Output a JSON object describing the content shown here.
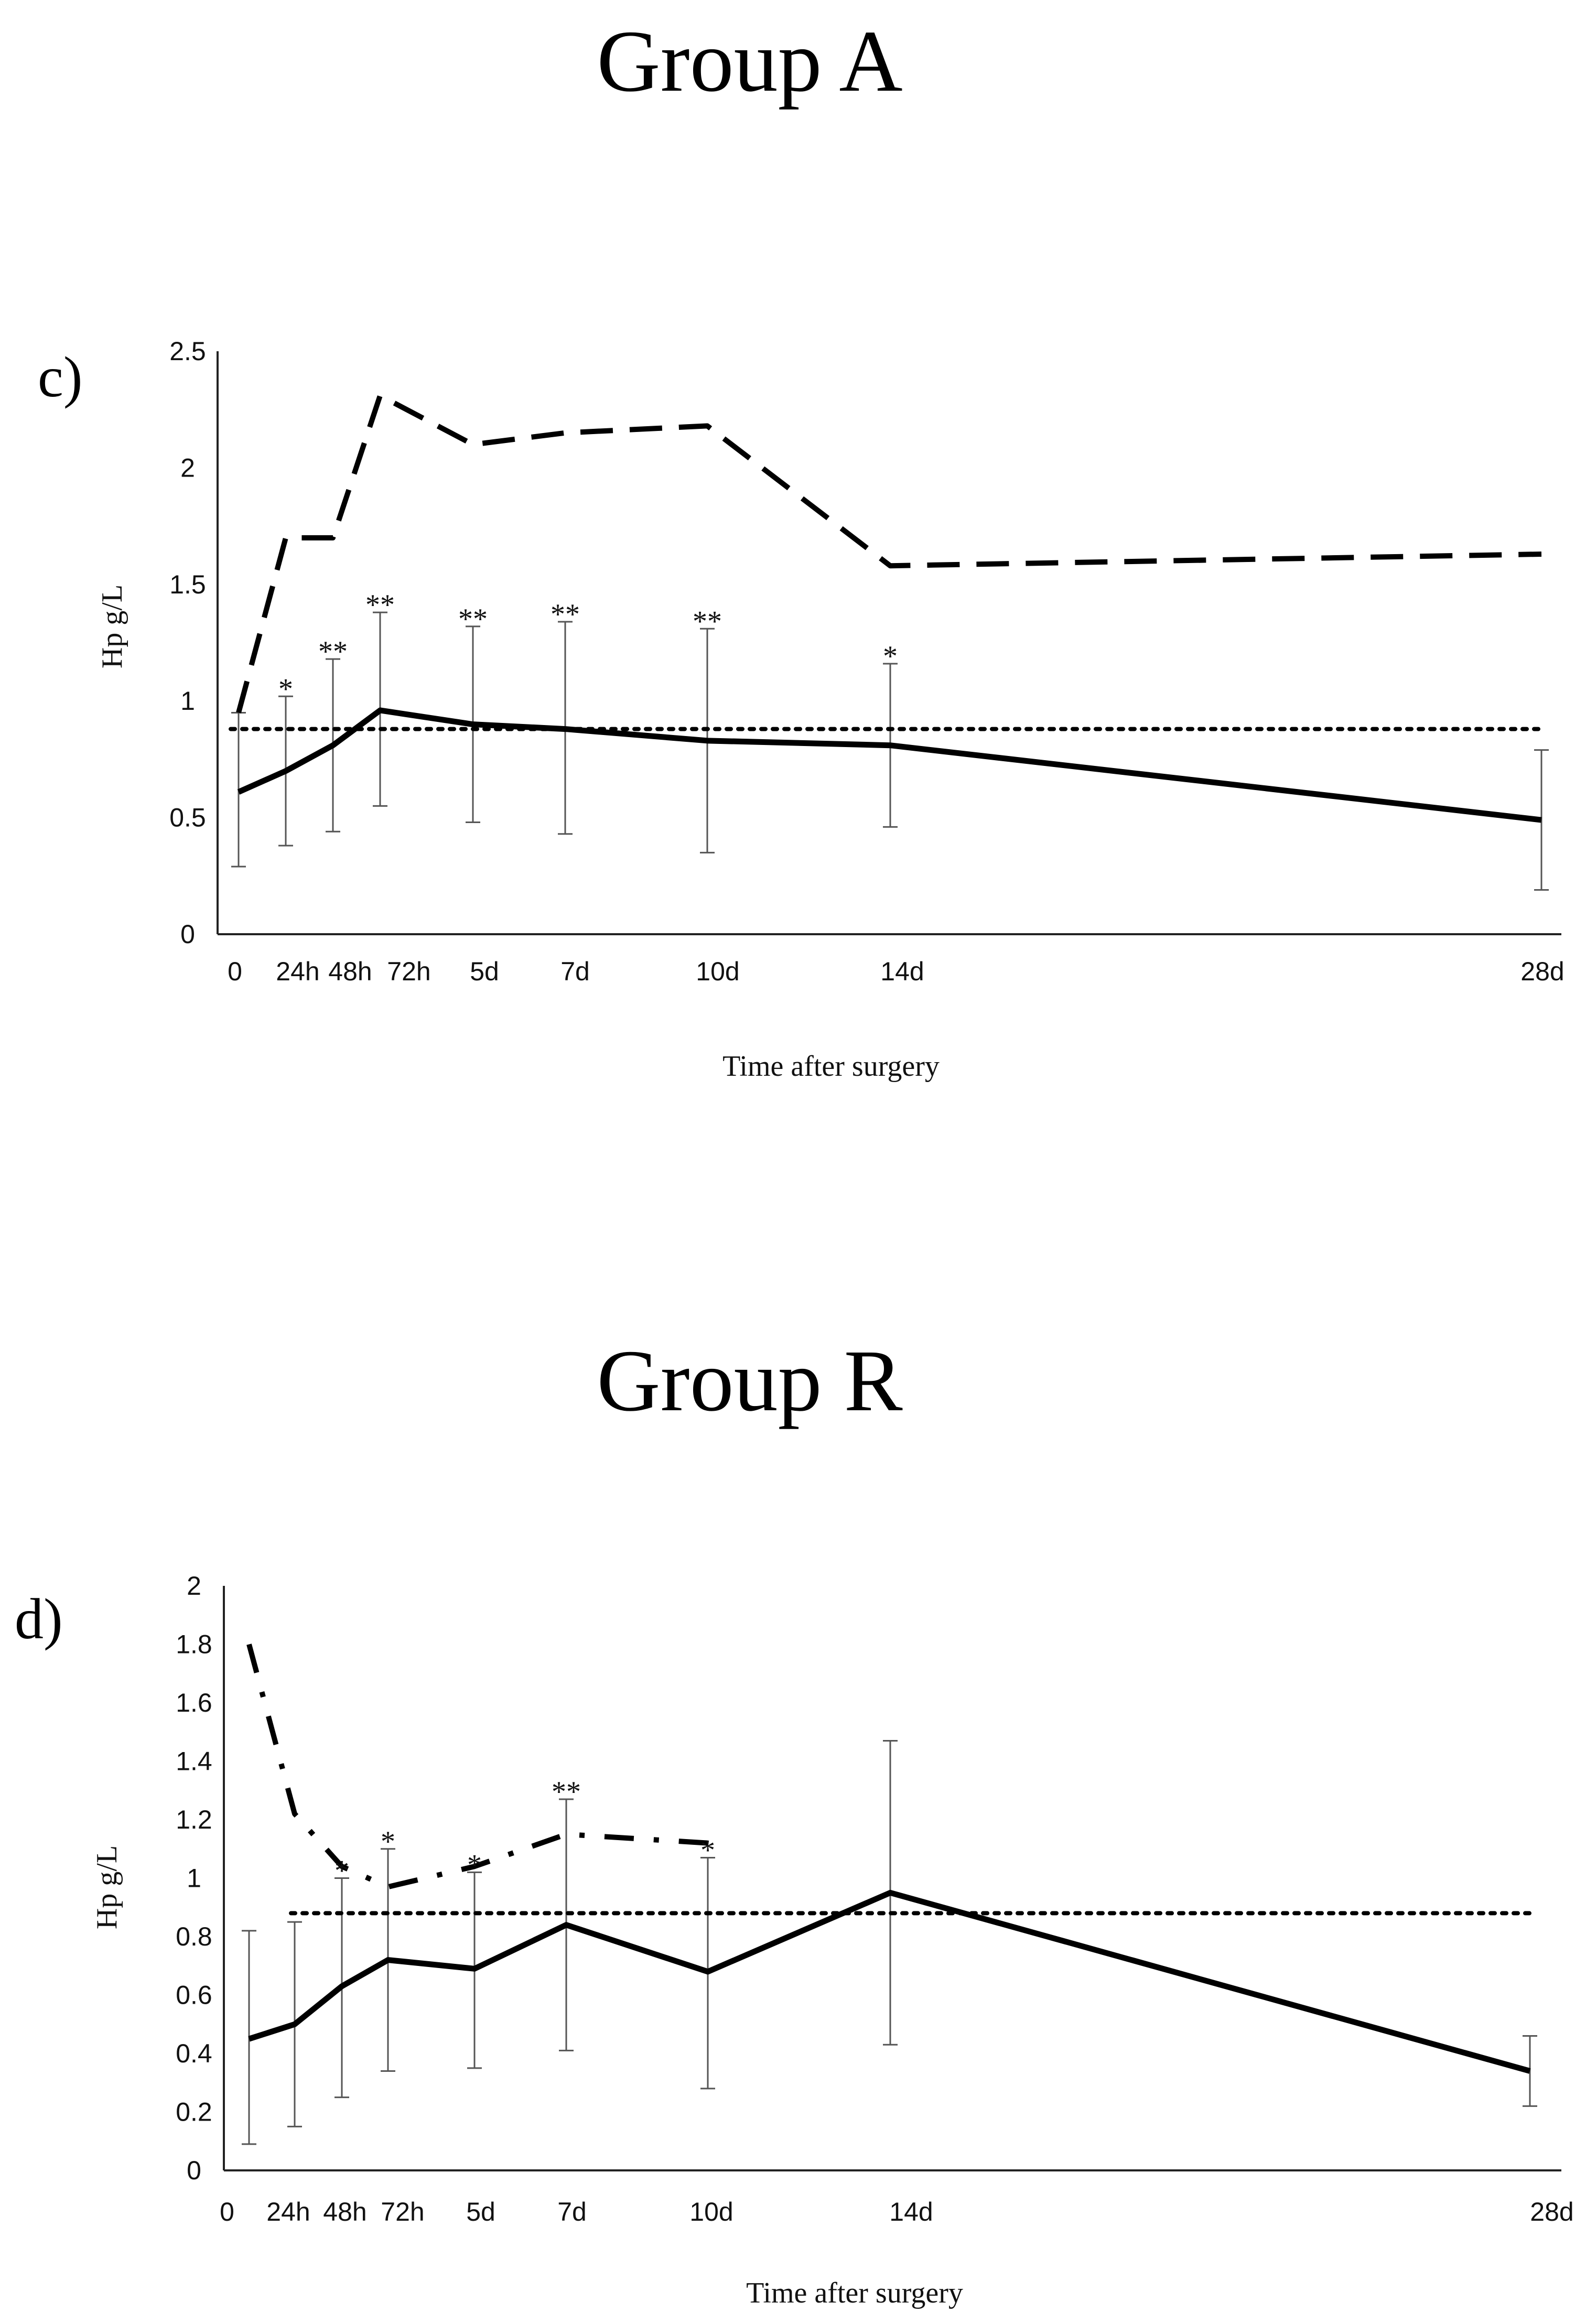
{
  "chart_data": [
    {
      "type": "line",
      "title": "Group A",
      "panel_label": "c)",
      "ylabel": "Hp g/L",
      "xlabel": "Time after surgery",
      "ylim": [
        0,
        2.5
      ],
      "yticks": [
        "0",
        "0.5",
        "1",
        "1.5",
        "2",
        "2.5"
      ],
      "ytick_values": [
        0,
        0.5,
        1,
        1.5,
        2,
        2.5
      ],
      "categories": [
        "0",
        "24h",
        "48h",
        "72h",
        "5d",
        "7d",
        "10d",
        "14d",
        "28d"
      ],
      "x_days": [
        0,
        1,
        2,
        3,
        5,
        7,
        10,
        14,
        28
      ],
      "series": [
        {
          "name": "mean",
          "style": "solid",
          "values": [
            0.61,
            0.7,
            0.81,
            0.96,
            0.9,
            0.88,
            0.83,
            0.81,
            0.49
          ]
        },
        {
          "name": "upper",
          "style": "dashed",
          "values": [
            0.95,
            1.7,
            1.7,
            2.31,
            2.1,
            2.15,
            2.18,
            1.58,
            1.63
          ]
        },
        {
          "name": "reference",
          "style": "dotted",
          "value": 0.88,
          "x_range_days": [
            0,
            28
          ]
        }
      ],
      "error_bars": {
        "lower": [
          0.29,
          0.38,
          0.44,
          0.55,
          0.48,
          0.43,
          0.35,
          0.46,
          0.19
        ],
        "upper": [
          0.95,
          1.02,
          1.18,
          1.38,
          1.32,
          1.34,
          1.31,
          1.16,
          0.79
        ]
      },
      "significance": [
        "",
        "*",
        "**",
        "**",
        "**",
        "**",
        "**",
        "*",
        ""
      ]
    },
    {
      "type": "line",
      "title": "Group R",
      "panel_label": "d)",
      "ylabel": "Hp g/L",
      "xlabel": "Time after surgery",
      "ylim": [
        0,
        2
      ],
      "yticks": [
        "0",
        "0.2",
        "0.4",
        "0.6",
        "0.8",
        "1",
        "1.2",
        "1.4",
        "1.6",
        "1.8",
        "2"
      ],
      "ytick_values": [
        0,
        0.2,
        0.4,
        0.6,
        0.8,
        1,
        1.2,
        1.4,
        1.6,
        1.8,
        2
      ],
      "categories": [
        "0",
        "24h",
        "48h",
        "72h",
        "5d",
        "7d",
        "10d",
        "14d",
        "28d"
      ],
      "x_days": [
        0,
        1,
        2,
        3,
        5,
        7,
        10,
        14,
        28
      ],
      "series": [
        {
          "name": "mean",
          "style": "solid",
          "values": [
            0.45,
            0.5,
            0.63,
            0.72,
            0.69,
            0.84,
            0.68,
            0.95,
            0.34
          ]
        },
        {
          "name": "upper",
          "style": "dashdot",
          "values": [
            1.8,
            1.22,
            1.04,
            0.97,
            1.04,
            1.15,
            1.12,
            null,
            null
          ]
        },
        {
          "name": "reference",
          "style": "dotted",
          "value": 0.88,
          "x_range_days": [
            1,
            28
          ]
        }
      ],
      "error_bars": {
        "lower": [
          0.09,
          0.15,
          0.25,
          0.34,
          0.35,
          0.41,
          0.28,
          0.43,
          0.22
        ],
        "upper": [
          0.82,
          0.85,
          1.0,
          1.1,
          1.02,
          1.27,
          1.07,
          1.47,
          0.46
        ]
      },
      "significance": [
        "",
        "",
        "*",
        "*",
        "*",
        "**",
        "*",
        "",
        ""
      ]
    }
  ]
}
